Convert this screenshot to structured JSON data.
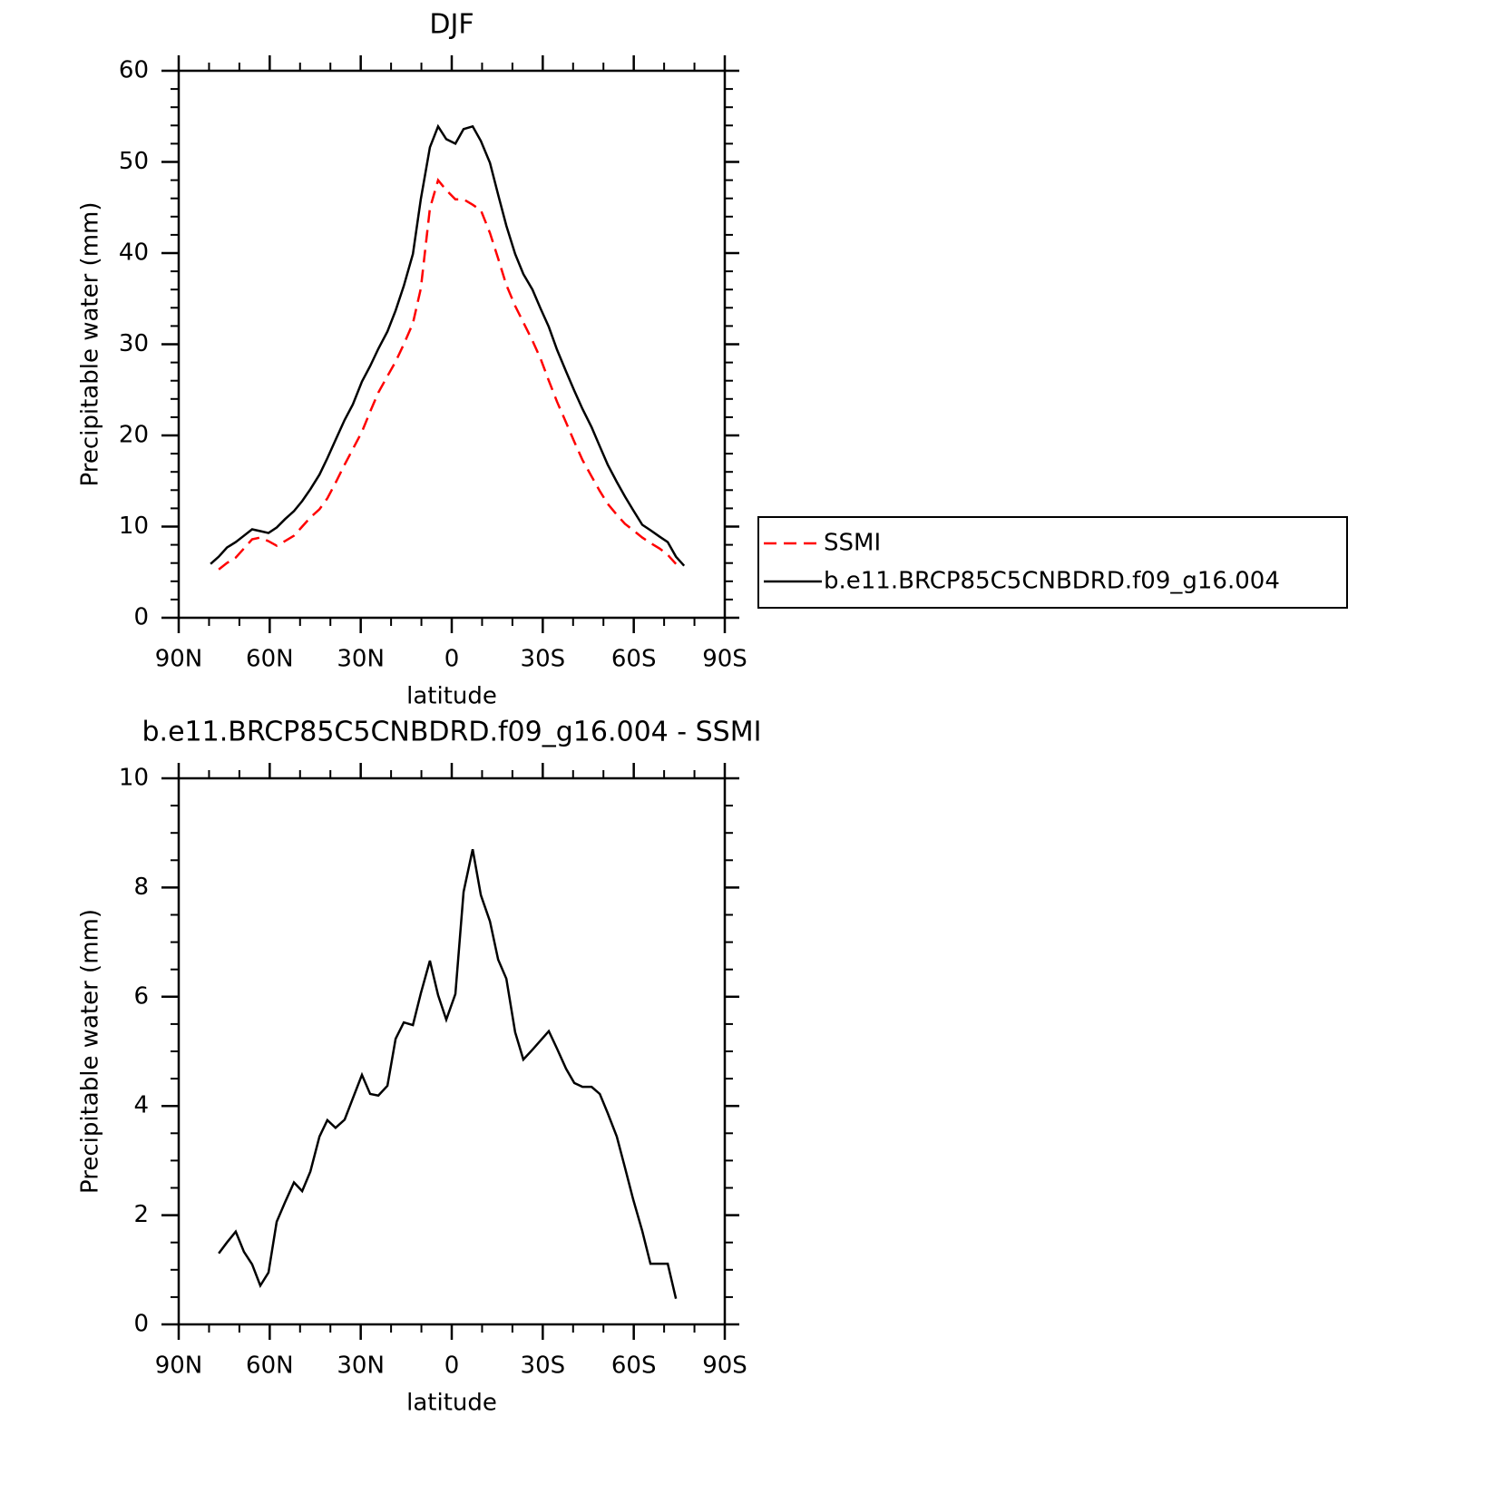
{
  "chart_data": [
    {
      "type": "line",
      "title": "DJF",
      "xlabel": "latitude",
      "ylabel": "Precipitable water (mm)",
      "xlim": [
        90,
        -90
      ],
      "xticks": [
        {
          "value": 90,
          "label": "90N"
        },
        {
          "value": 60,
          "label": "60N"
        },
        {
          "value": 30,
          "label": "30N"
        },
        0,
        {
          "value": -30,
          "label": "30S"
        },
        {
          "value": -60,
          "label": "60S"
        },
        {
          "value": -90,
          "label": "90S"
        }
      ],
      "xminorticks": [
        80,
        70,
        50,
        40,
        20,
        10,
        -10,
        -20,
        -40,
        -50,
        -70,
        -80
      ],
      "ylim": [
        0,
        60
      ],
      "yticks": [
        0,
        10,
        20,
        30,
        40,
        50,
        60
      ],
      "yminorticks": [
        2,
        4,
        6,
        8,
        12,
        14,
        16,
        18,
        22,
        24,
        26,
        28,
        32,
        34,
        36,
        38,
        42,
        44,
        46,
        48,
        52,
        54,
        56,
        58
      ],
      "legend": "right",
      "x": [
        79.5,
        76.8,
        74.1,
        71.2,
        68.5,
        65.8,
        63.1,
        60.4,
        57.7,
        55.0,
        52.0,
        49.3,
        46.6,
        43.6,
        41.0,
        38.3,
        35.3,
        32.6,
        29.6,
        26.9,
        24.2,
        21.2,
        18.5,
        15.8,
        12.8,
        10.2,
        7.2,
        4.5,
        1.8,
        -1.2,
        -3.9,
        -6.9,
        -9.6,
        -12.6,
        -15.3,
        -18.0,
        -20.9,
        -23.6,
        -26.6,
        -29.3,
        -32.0,
        -34.7,
        -37.7,
        -40.4,
        -43.1,
        -46.1,
        -48.8,
        -51.4,
        -54.4,
        -57.1,
        -59.8,
        -62.8,
        -65.5,
        -68.5,
        -71.2,
        -73.9,
        -76.6
      ],
      "series": [
        {
          "name": "SSMI",
          "color": "#ff0000",
          "dashed": true,
          "values": [
            null,
            5.3,
            6.0,
            6.6,
            7.6,
            8.6,
            8.8,
            8.4,
            7.9,
            8.4,
            9.0,
            10.0,
            11.0,
            11.9,
            13.1,
            14.8,
            16.8,
            18.5,
            20.4,
            22.6,
            24.7,
            26.5,
            28.1,
            30.0,
            32.3,
            36.1,
            44.9,
            48.0,
            46.9,
            45.9,
            45.9,
            45.3,
            44.7,
            42.2,
            39.4,
            36.5,
            34.2,
            32.4,
            30.4,
            28.4,
            26.0,
            23.7,
            21.4,
            19.3,
            17.3,
            15.5,
            13.9,
            12.5,
            11.3,
            10.3,
            9.6,
            8.8,
            8.2,
            7.6,
            6.9,
            5.9,
            null
          ]
        },
        {
          "name": "b.e11.BRCP85C5CNBDRD.f09_g16.004",
          "color": "#000000",
          "dashed": false,
          "values": [
            5.9,
            6.7,
            7.7,
            8.3,
            9.0,
            9.7,
            9.5,
            9.3,
            9.9,
            10.8,
            11.7,
            12.8,
            14.1,
            15.7,
            17.5,
            19.5,
            21.7,
            23.4,
            25.9,
            27.6,
            29.5,
            31.4,
            33.7,
            36.4,
            39.9,
            45.9,
            51.6,
            53.9,
            52.5,
            52.0,
            53.6,
            53.9,
            52.3,
            49.9,
            46.4,
            43.0,
            39.9,
            37.7,
            36.0,
            33.9,
            31.9,
            29.4,
            27.0,
            24.9,
            22.9,
            20.9,
            18.8,
            16.8,
            14.9,
            13.3,
            11.8,
            10.2,
            9.6,
            8.9,
            8.3,
            6.7,
            5.7
          ]
        }
      ]
    },
    {
      "type": "line",
      "title": "b.e11.BRCP85C5CNBDRD.f09_g16.004 - SSMI",
      "xlabel": "latitude",
      "ylabel": "Precipitable water (mm)",
      "xlim": [
        90,
        -90
      ],
      "xticks": [
        {
          "value": 90,
          "label": "90N"
        },
        {
          "value": 60,
          "label": "60N"
        },
        {
          "value": 30,
          "label": "30N"
        },
        0,
        {
          "value": -30,
          "label": "30S"
        },
        {
          "value": -60,
          "label": "60S"
        },
        {
          "value": -90,
          "label": "90S"
        }
      ],
      "xminorticks": [
        80,
        70,
        50,
        40,
        20,
        10,
        -10,
        -20,
        -40,
        -50,
        -70,
        -80
      ],
      "ylim": [
        0,
        10
      ],
      "yticks": [
        0,
        2,
        4,
        6,
        8,
        10
      ],
      "yminorticks": [
        0.5,
        1,
        1.5,
        2.5,
        3,
        3.5,
        4.5,
        5,
        5.5,
        6.5,
        7,
        7.5,
        8.5,
        9,
        9.5
      ],
      "x": [
        76.8,
        74.1,
        71.2,
        68.5,
        65.8,
        63.1,
        60.4,
        57.7,
        55.0,
        52.0,
        49.3,
        46.6,
        43.6,
        41.0,
        38.3,
        35.3,
        32.6,
        29.6,
        26.9,
        24.2,
        21.2,
        18.5,
        15.8,
        12.8,
        10.2,
        7.2,
        4.5,
        1.8,
        -1.2,
        -3.9,
        -6.9,
        -9.6,
        -12.6,
        -15.3,
        -18.0,
        -20.9,
        -23.6,
        -26.6,
        -29.3,
        -32.0,
        -34.7,
        -37.7,
        -40.4,
        -43.1,
        -46.1,
        -48.8,
        -51.4,
        -54.4,
        -57.1,
        -59.8,
        -62.8,
        -65.5,
        -68.5,
        -71.2,
        -73.9
      ],
      "color": "#000000",
      "values": [
        1.3,
        1.5,
        1.7,
        1.33,
        1.1,
        0.71,
        0.95,
        1.88,
        2.23,
        2.6,
        2.44,
        2.8,
        3.44,
        3.74,
        3.6,
        3.75,
        4.14,
        4.57,
        4.22,
        4.19,
        4.37,
        5.23,
        5.53,
        5.48,
        6.06,
        6.66,
        6.03,
        5.58,
        6.05,
        7.92,
        8.7,
        7.86,
        7.38,
        6.68,
        6.33,
        5.35,
        4.85,
        5.03,
        5.2,
        5.37,
        5.05,
        4.68,
        4.42,
        4.35,
        4.35,
        4.22,
        3.87,
        3.44,
        2.87,
        2.29,
        1.71,
        1.11,
        1.11,
        1.11,
        0.47
      ]
    }
  ]
}
